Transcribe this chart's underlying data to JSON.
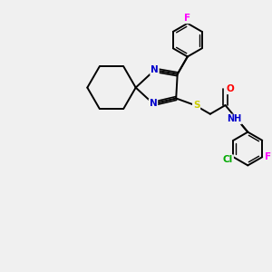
{
  "bg_color": "#f0f0f0",
  "bond_color": "#000000",
  "atom_colors": {
    "N": "#0000cc",
    "S": "#cccc00",
    "O": "#ff0000",
    "F": "#ff00ff",
    "Cl": "#00aa00",
    "H": "#008080"
  }
}
